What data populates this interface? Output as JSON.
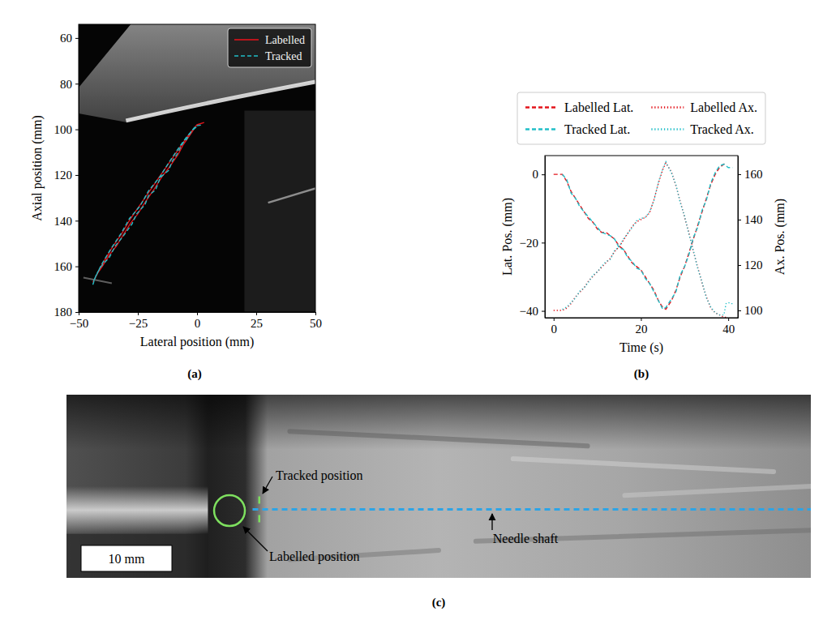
{
  "chart_data": [
    {
      "type": "line",
      "panel_label": "(a)",
      "xlabel": "Lateral position (mm)",
      "ylabel": "Axial position (mm)",
      "xlim": [
        -50,
        50
      ],
      "ylim": [
        54,
        180
      ],
      "xticks": [
        {
          "value": -50,
          "label": "−50"
        },
        {
          "value": -25,
          "label": "−25"
        },
        0,
        25,
        50
      ],
      "yticks": [
        60,
        80,
        100,
        120,
        140,
        160,
        180
      ],
      "legend": "upper right",
      "series": [
        {
          "name": "Labelled",
          "color": "#e3141b",
          "line_style": "solid",
          "x": [
            -0.5,
            -2,
            -4,
            -6,
            -8,
            -10,
            -12,
            -15,
            -18,
            -20,
            -22,
            -25,
            -28,
            -31,
            -34,
            -37,
            -40,
            -42,
            -44,
            -43,
            -40,
            -36,
            -32,
            -28,
            -24,
            -20,
            -16,
            -12,
            -8,
            -4,
            0,
            3
          ],
          "values": [
            98.5,
            101,
            104,
            107,
            111,
            114,
            117,
            121,
            126,
            129,
            132,
            137,
            141,
            146,
            151,
            155,
            160,
            163,
            167,
            165,
            159,
            152,
            146,
            139,
            133,
            127,
            121,
            115,
            109,
            103,
            98,
            97
          ]
        },
        {
          "name": "Tracked",
          "color": "#20bfc8",
          "line_style": "dashed",
          "x": [
            -0.3,
            -2.5,
            -4.5,
            -6,
            -8.5,
            -10.5,
            -12,
            -15.5,
            -17.5,
            -20.5,
            -22,
            -25.5,
            -27.5,
            -31,
            -34.5,
            -37,
            -40.5,
            -42.5,
            -44,
            -43.5,
            -40.5,
            -36.5,
            -32,
            -28.5,
            -24,
            -20.5,
            -15.5,
            -12.5,
            -8,
            -4.5,
            -0.5,
            2.5
          ],
          "values": [
            99,
            101,
            104.5,
            106,
            111,
            114,
            118,
            121,
            126.5,
            129,
            133,
            137,
            141.5,
            146.5,
            151,
            156,
            160,
            163.5,
            168,
            166,
            159.5,
            152.5,
            145.5,
            139,
            133.5,
            127,
            120.5,
            115.5,
            108.5,
            103.5,
            98.5,
            98
          ]
        }
      ]
    },
    {
      "type": "line",
      "panel_label": "(b)",
      "xlabel": "Time (s)",
      "ylabel": "Lat. Pos. (mm)",
      "y2label": "Ax. Pos. (mm)",
      "xlim": [
        -2,
        42.2
      ],
      "ylim": [
        -42,
        5.5
      ],
      "y2lim": [
        96.8,
        168.2
      ],
      "xticks": [
        0,
        20,
        40
      ],
      "yticks": [
        {
          "value": -40,
          "label": "−40"
        },
        {
          "value": -20,
          "label": "−20"
        },
        0
      ],
      "y2ticks": [
        100,
        120,
        140,
        160
      ],
      "legend": "top",
      "series": [
        {
          "name": "Labelled Lat.",
          "color": "#e3141b",
          "line_style": "dashed",
          "x": [
            0,
            1,
            2,
            3,
            4,
            5,
            6,
            7,
            8,
            9,
            10,
            11,
            12,
            13,
            14,
            15,
            16,
            17,
            18,
            19,
            20,
            21,
            22,
            23,
            24,
            25,
            25.7,
            27,
            28,
            29,
            30,
            31,
            32,
            33,
            34,
            35,
            36,
            37,
            38,
            39,
            39.5
          ],
          "values": [
            0,
            0,
            0,
            -2,
            -5,
            -7,
            -9,
            -11,
            -13,
            -14,
            -16,
            -17,
            -17,
            -18,
            -19,
            -21,
            -22,
            -24,
            -26,
            -27,
            -28,
            -30,
            -32,
            -34,
            -37,
            -39,
            -39.5,
            -37,
            -34,
            -30,
            -27,
            -23,
            -19,
            -15,
            -11,
            -7,
            -3,
            0,
            2,
            3,
            3.5
          ]
        },
        {
          "name": "Tracked Lat.",
          "color": "#20bfc8",
          "line_style": "dashed",
          "x": [
            2,
            3,
            4,
            5,
            6,
            7,
            8,
            9,
            10,
            11,
            12,
            13,
            14,
            15,
            16,
            17,
            18,
            19,
            20,
            21,
            22,
            23,
            24,
            25,
            25.7,
            27,
            28,
            29,
            30,
            31,
            32,
            33,
            34,
            35,
            36,
            37,
            38,
            39,
            39.5,
            40,
            40.5,
            41
          ],
          "values": [
            0,
            -1.5,
            -5.5,
            -7,
            -9.5,
            -11,
            -12.5,
            -14,
            -15.5,
            -17,
            -17.5,
            -18,
            -19,
            -21.5,
            -22,
            -24.5,
            -25.5,
            -27.5,
            -28,
            -30.5,
            -32,
            -34.5,
            -37,
            -39.5,
            -39,
            -36.5,
            -34.5,
            -29.5,
            -27,
            -23.5,
            -18.5,
            -15.5,
            -10.5,
            -7.5,
            -2.5,
            0.5,
            2.5,
            3,
            2.5,
            2,
            2,
            2
          ]
        },
        {
          "name": "Labelled Ax.",
          "color": "#e3141b",
          "line_style": "dotted",
          "axis": "y2",
          "x": [
            0,
            1,
            2,
            3,
            4,
            5,
            6,
            7,
            8,
            9,
            10,
            11,
            12,
            13,
            14,
            15,
            16,
            17,
            18,
            19,
            20,
            21,
            22,
            23,
            24,
            25,
            25.7,
            27,
            28,
            29,
            30,
            31,
            32,
            33,
            34,
            35,
            36,
            37,
            38,
            39,
            39.5
          ],
          "values": [
            100,
            100,
            100,
            101,
            103,
            106,
            108,
            110,
            113,
            115,
            117,
            119,
            121,
            123,
            126,
            128,
            131,
            134,
            137,
            139,
            140,
            141,
            143,
            149,
            156,
            162,
            165,
            161,
            155,
            148,
            141,
            134,
            126,
            119,
            112,
            106,
            101,
            99,
            98,
            97,
            97
          ]
        },
        {
          "name": "Tracked Ax.",
          "color": "#20bfc8",
          "line_style": "dotted",
          "axis": "y2",
          "x": [
            2,
            3,
            4,
            5,
            6,
            7,
            8,
            9,
            10,
            11,
            12,
            13,
            14,
            15,
            16,
            17,
            18,
            19,
            20,
            21,
            22,
            23,
            24,
            25,
            25.7,
            27,
            28,
            29,
            30,
            31,
            32,
            33,
            34,
            35,
            36,
            37,
            38,
            39,
            39.5,
            40,
            40.5,
            41
          ],
          "values": [
            100.5,
            101.5,
            103.5,
            105.5,
            108.5,
            110,
            112.5,
            115.5,
            117,
            119.5,
            121.5,
            122.5,
            126.5,
            128,
            131.5,
            134,
            136.5,
            139.5,
            140.5,
            141,
            143.5,
            148.5,
            156.5,
            162.5,
            165.5,
            160.5,
            155.5,
            147.5,
            141.5,
            133.5,
            126.5,
            118.5,
            112.5,
            105.5,
            101.5,
            99,
            98,
            98,
            103,
            103.5,
            103,
            103
          ]
        }
      ]
    }
  ],
  "panel_c": {
    "type": "image",
    "panel_label": "(c)",
    "annotations": {
      "tracked": "Tracked position",
      "labelled": "Labelled position",
      "shaft": "Needle shaft"
    },
    "scale_bar": "10 mm"
  }
}
